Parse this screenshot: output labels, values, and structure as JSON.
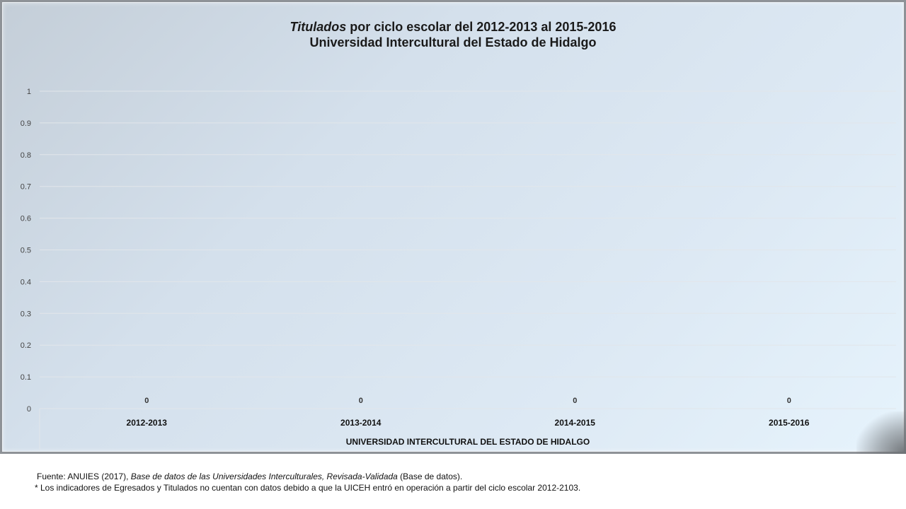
{
  "chart_data": {
    "type": "bar",
    "title_italic": "Titulados",
    "title_rest": " por ciclo escolar del 2012-2013 al 2015-2016",
    "subtitle": "Universidad Intercultural del Estado de Hidalgo",
    "categories": [
      "2012-2013",
      "2013-2014",
      "2014-2015",
      "2015-2016"
    ],
    "values": [
      0,
      0,
      0,
      0
    ],
    "data_labels": [
      "0",
      "0",
      "0",
      "0"
    ],
    "y_ticks": [
      "0",
      "0.1",
      "0.2",
      "0.3",
      "0.4",
      "0.5",
      "0.6",
      "0.7",
      "0.8",
      "0.9",
      "1"
    ],
    "ylim": [
      0,
      1
    ],
    "xlabel": "UNIVERSIDAD INTERCULTURAL DEL ESTADO DE HIDALGO",
    "ylabel": "",
    "grid": true,
    "gridline_color": "#e2e6ea"
  },
  "footnotes": {
    "source_prefix": "Fuente: ANUIES (2017), ",
    "source_italic": "Base de datos de las Universidades Interculturales, Revisada-Validada",
    "source_suffix": " (Base de datos).",
    "note": "* Los indicadores de Egresados y Titulados no cuentan con datos debido a que la UICEH entró en operación a partir del ciclo escolar 2012-2103."
  }
}
